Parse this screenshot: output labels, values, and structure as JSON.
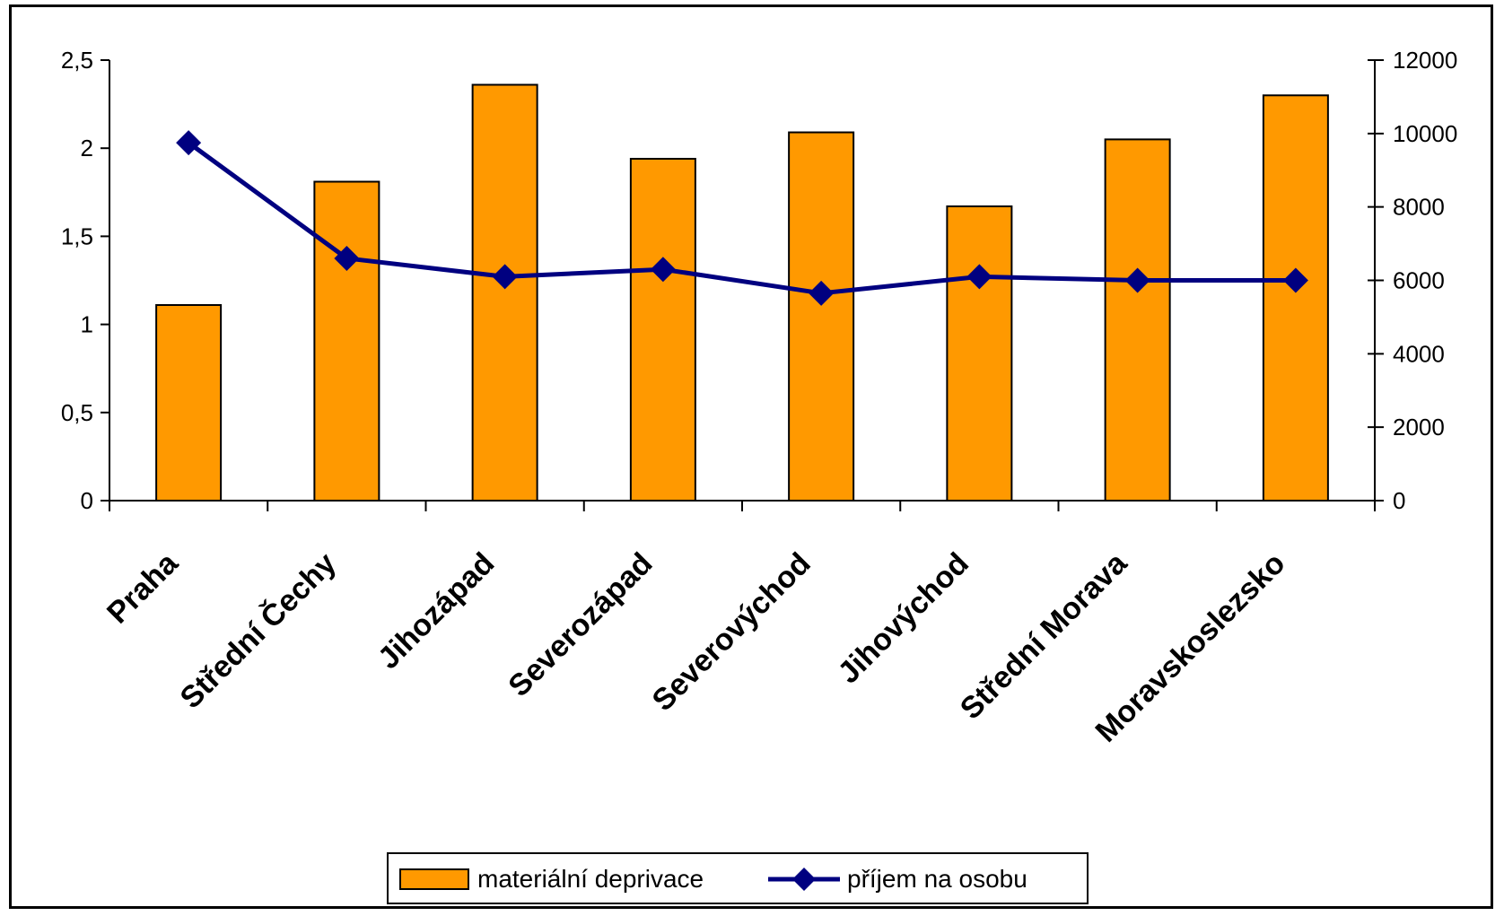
{
  "chart_data": {
    "type": "bar",
    "categories": [
      "Praha",
      "Střední Čechy",
      "Jihozápad",
      "Severozápad",
      "Severovýchod",
      "Jihovýchod",
      "Střední Morava",
      "Moravskoslezsko"
    ],
    "series": [
      {
        "name": "materiální deprivace",
        "type": "bar",
        "axis": "left",
        "color": "#ff9900",
        "values": [
          1.11,
          1.81,
          2.36,
          1.94,
          2.09,
          1.67,
          2.05,
          2.3
        ]
      },
      {
        "name": "příjem na osobu",
        "type": "line",
        "axis": "right",
        "color": "#000080",
        "marker": "diamond",
        "values": [
          9750,
          6600,
          6100,
          6300,
          5650,
          6100,
          6000,
          6000
        ]
      }
    ],
    "y_left": {
      "ylim": [
        0,
        2.5
      ],
      "ticks": [
        0,
        0.5,
        1,
        1.5,
        2,
        2.5
      ],
      "tick_labels": [
        "0",
        "0,5",
        "1",
        "1,5",
        "2",
        "2,5"
      ]
    },
    "y_right": {
      "ylim": [
        0,
        12000
      ],
      "ticks": [
        0,
        2000,
        4000,
        6000,
        8000,
        10000,
        12000
      ],
      "tick_labels": [
        "0",
        "2000",
        "4000",
        "6000",
        "8000",
        "10000",
        "12000"
      ]
    },
    "title": "",
    "xlabel": "",
    "ylabel": "",
    "grid": false,
    "legend_position": "bottom"
  }
}
